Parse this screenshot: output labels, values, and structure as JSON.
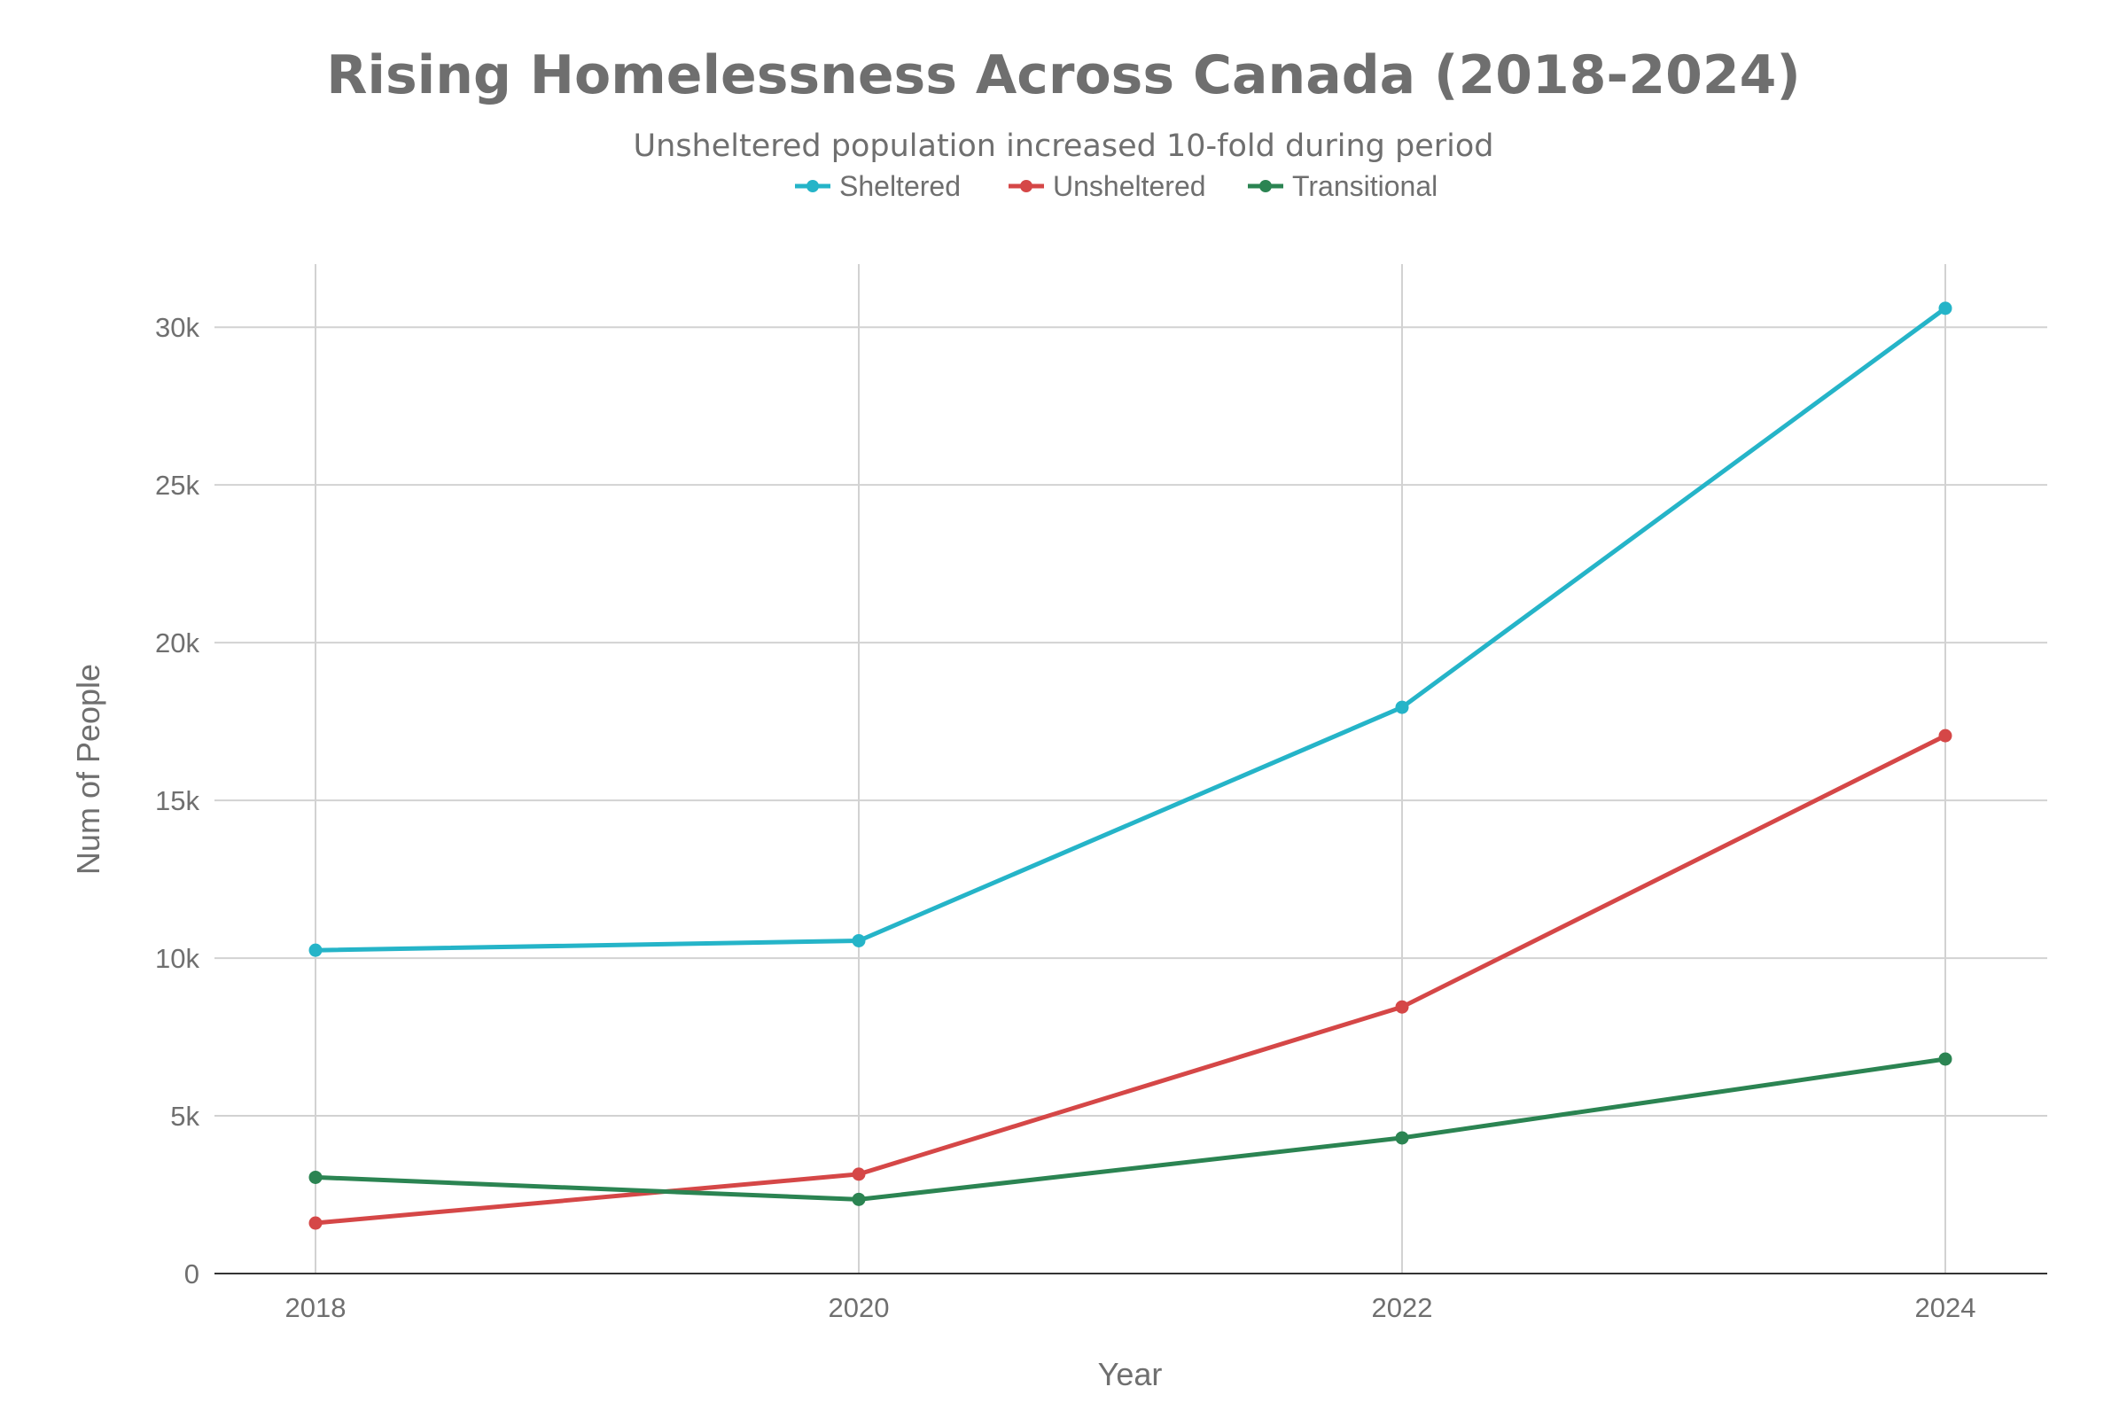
{
  "chart_data": {
    "type": "line",
    "title": "Rising Homelessness Across Canada (2018-2024)",
    "subtitle": "Unsheltered population increased 10-fold during period",
    "xlabel": "Year",
    "ylabel": "Num of People",
    "x": [
      2018,
      2020,
      2022,
      2024
    ],
    "x_tick_labels": [
      "2018",
      "2020",
      "2022",
      "2024"
    ],
    "ylim": [
      0,
      32000
    ],
    "y_ticks": [
      0,
      5000,
      10000,
      15000,
      20000,
      25000,
      30000
    ],
    "y_tick_labels": [
      "0",
      "5k",
      "10k",
      "15k",
      "20k",
      "25k",
      "30k"
    ],
    "grid": true,
    "legend_position": "top-center",
    "series": [
      {
        "name": "Sheltered",
        "color": "#25b4c8",
        "values": [
          10250,
          10550,
          17950,
          30600
        ]
      },
      {
        "name": "Unsheltered",
        "color": "#d54747",
        "values": [
          1600,
          3150,
          8450,
          17050
        ]
      },
      {
        "name": "Transitional",
        "color": "#2b8452",
        "values": [
          3050,
          2350,
          4300,
          6800
        ]
      }
    ]
  }
}
